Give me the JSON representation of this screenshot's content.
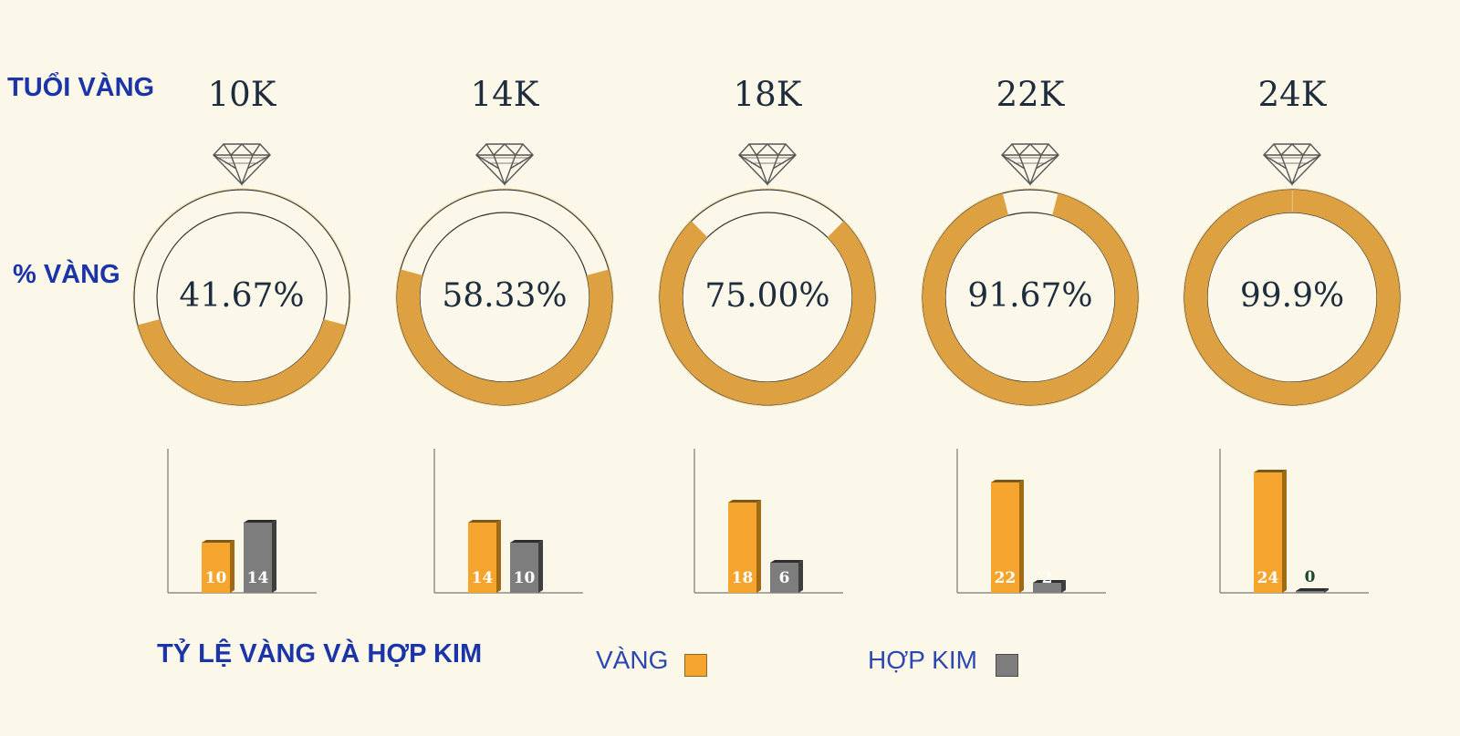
{
  "labels": {
    "age": "TUỔI VÀNG",
    "pct": "% VÀNG",
    "ratio": "TỶ LỆ VÀNG VÀ HỢP KIM"
  },
  "legend": {
    "gold": "VÀNG",
    "alloy": "HỢP KIM",
    "gold_color": "#f5a52e",
    "alloy_color": "#7d7d7d"
  },
  "icons": {
    "gem": "diamond-icon"
  },
  "chart_data": [
    {
      "type": "pie",
      "title": "% VÀNG",
      "categories": [
        "10K",
        "14K",
        "18K",
        "22K",
        "24K"
      ],
      "values": [
        41.67,
        58.33,
        75.0,
        91.67,
        99.9
      ],
      "value_labels": [
        "41.67%",
        "58.33%",
        "75.00%",
        "91.67%",
        "99.9%"
      ],
      "ring_color": "#dea142"
    },
    {
      "type": "bar",
      "title": "TỶ LỆ VÀNG VÀ HỢP KIM",
      "categories": [
        "10K",
        "14K",
        "18K",
        "22K",
        "24K"
      ],
      "series": [
        {
          "name": "VÀNG",
          "values": [
            10,
            14,
            18,
            22,
            24
          ]
        },
        {
          "name": "HỢP KIM",
          "values": [
            14,
            10,
            6,
            2,
            0
          ]
        }
      ],
      "ylim": [
        0,
        24
      ]
    }
  ]
}
